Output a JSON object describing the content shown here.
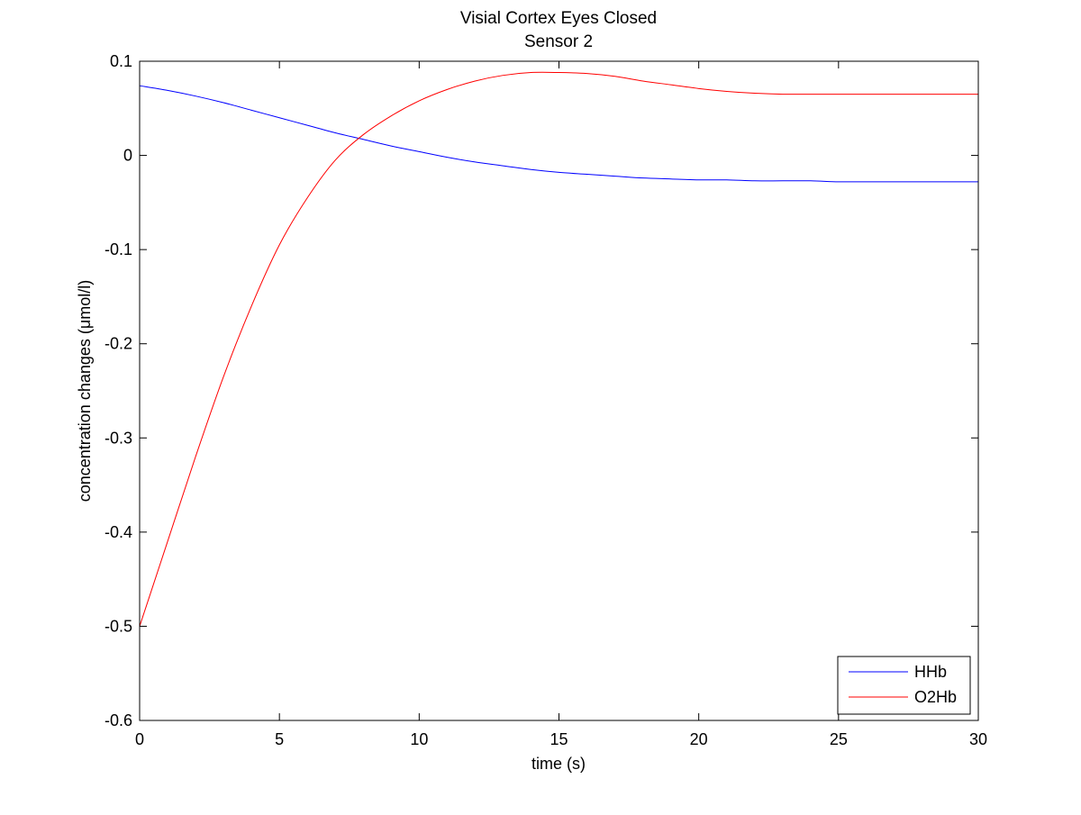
{
  "chart_data": {
    "type": "line",
    "title": "Visial Cortex Eyes Closed",
    "subtitle": "Sensor 2",
    "xlabel": "time (s)",
    "ylabel": "concentration changes (μmol/l)",
    "xlim": [
      0,
      30
    ],
    "ylim": [
      -0.6,
      0.1
    ],
    "xticks": [
      0,
      5,
      10,
      15,
      20,
      25,
      30
    ],
    "yticks": [
      0.1,
      0,
      -0.1,
      -0.2,
      -0.3,
      -0.4,
      -0.5,
      -0.6
    ],
    "xtick_labels": [
      "0",
      "5",
      "10",
      "15",
      "20",
      "25",
      "30"
    ],
    "ytick_labels": [
      "0.1",
      "0",
      "-0.1",
      "-0.2",
      "-0.3",
      "-0.4",
      "-0.5",
      "-0.6"
    ],
    "grid": false,
    "legend_position": "bottom-right",
    "series": [
      {
        "name": "HHb",
        "color": "#0000ff",
        "x": [
          0,
          1,
          2,
          3,
          4,
          5,
          6,
          7,
          8,
          9,
          10,
          11,
          12,
          13,
          14,
          15,
          16,
          17,
          18,
          19,
          20,
          21,
          22,
          23,
          24,
          25,
          26,
          27,
          28,
          29,
          30
        ],
        "y": [
          0.074,
          0.069,
          0.063,
          0.056,
          0.048,
          0.04,
          0.032,
          0.024,
          0.017,
          0.01,
          0.004,
          -0.002,
          -0.007,
          -0.011,
          -0.015,
          -0.018,
          -0.02,
          -0.022,
          -0.024,
          -0.025,
          -0.026,
          -0.026,
          -0.027,
          -0.027,
          -0.027,
          -0.028,
          -0.028,
          -0.028,
          -0.028,
          -0.028,
          -0.028
        ]
      },
      {
        "name": "O2Hb",
        "color": "#ff0000",
        "x": [
          0,
          1,
          2,
          3,
          4,
          5,
          6,
          7,
          8,
          9,
          10,
          11,
          12,
          13,
          14,
          15,
          16,
          17,
          18,
          19,
          20,
          21,
          22,
          23,
          24,
          25,
          26,
          27,
          28,
          29,
          30
        ],
        "y": [
          -0.5,
          -0.41,
          -0.32,
          -0.235,
          -0.16,
          -0.095,
          -0.045,
          -0.005,
          0.022,
          0.042,
          0.058,
          0.07,
          0.079,
          0.085,
          0.088,
          0.088,
          0.087,
          0.084,
          0.079,
          0.075,
          0.071,
          0.068,
          0.066,
          0.065,
          0.065,
          0.065,
          0.065,
          0.065,
          0.065,
          0.065,
          0.065
        ]
      }
    ]
  }
}
